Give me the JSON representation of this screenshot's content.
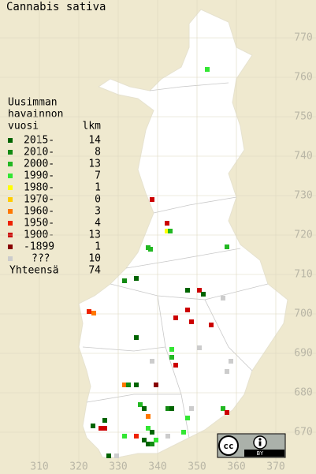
{
  "title": "Cannabis sativa",
  "legend": {
    "header": [
      "Uusimman",
      "havainnon",
      "vuosi"
    ],
    "count_header": "lkm",
    "items": [
      {
        "label": "2015-",
        "count": 14,
        "color": "#006400"
      },
      {
        "label": "2010-",
        "count": 8,
        "color": "#128a12"
      },
      {
        "label": "2000-",
        "count": 13,
        "color": "#22b822"
      },
      {
        "label": "1990-",
        "count": 7,
        "color": "#33e633"
      },
      {
        "label": "1980-",
        "count": 1,
        "color": "#ffff00"
      },
      {
        "label": "1970-",
        "count": 0,
        "color": "#ffcc00"
      },
      {
        "label": "1960-",
        "count": 3,
        "color": "#ff7700"
      },
      {
        "label": "1950-",
        "count": 4,
        "color": "#ee2200"
      },
      {
        "label": "1900-",
        "count": 13,
        "color": "#cc0000"
      },
      {
        "label": "-1899",
        "count": 1,
        "color": "#880000"
      },
      {
        "label": "???",
        "count": 10,
        "color": "#cccccc"
      }
    ],
    "total_label": "Yhteensä",
    "total": 74
  },
  "x_labels": [
    310,
    320,
    330,
    340,
    350,
    360,
    370
  ],
  "y_labels": [
    770,
    760,
    750,
    740,
    730,
    720,
    710,
    700,
    690,
    680,
    670
  ],
  "points": [
    {
      "x": 352.6,
      "y": 762,
      "class": 3
    },
    {
      "x": 338.6,
      "y": 729,
      "class": 8
    },
    {
      "x": 342.4,
      "y": 723,
      "class": 8
    },
    {
      "x": 342.4,
      "y": 721,
      "class": 4
    },
    {
      "x": 343.2,
      "y": 721,
      "class": 2
    },
    {
      "x": 337.6,
      "y": 716.8,
      "class": 2
    },
    {
      "x": 338.2,
      "y": 716.4,
      "class": 2
    },
    {
      "x": 357.6,
      "y": 717,
      "class": 2
    },
    {
      "x": 331.6,
      "y": 708.4,
      "class": 1
    },
    {
      "x": 334.6,
      "y": 709,
      "class": 0
    },
    {
      "x": 347.6,
      "y": 706,
      "class": 0
    },
    {
      "x": 350.6,
      "y": 706,
      "class": 8
    },
    {
      "x": 351.6,
      "y": 705,
      "class": 0
    },
    {
      "x": 356.6,
      "y": 704,
      "class": 10
    },
    {
      "x": 322.6,
      "y": 700.6,
      "class": 7
    },
    {
      "x": 323.8,
      "y": 700.2,
      "class": 6
    },
    {
      "x": 347.6,
      "y": 701,
      "class": 8
    },
    {
      "x": 344.6,
      "y": 699,
      "class": 8
    },
    {
      "x": 348.6,
      "y": 698,
      "class": 8
    },
    {
      "x": 353.6,
      "y": 697.2,
      "class": 8
    },
    {
      "x": 334.6,
      "y": 694,
      "class": 0
    },
    {
      "x": 343.6,
      "y": 691,
      "class": 3
    },
    {
      "x": 343.6,
      "y": 689,
      "class": 2
    },
    {
      "x": 350.6,
      "y": 691.4,
      "class": 10
    },
    {
      "x": 338.6,
      "y": 688,
      "class": 10
    },
    {
      "x": 344.6,
      "y": 687,
      "class": 8
    },
    {
      "x": 358.6,
      "y": 688,
      "class": 10
    },
    {
      "x": 357.6,
      "y": 685.4,
      "class": 10
    },
    {
      "x": 331.6,
      "y": 682,
      "class": 6
    },
    {
      "x": 332.6,
      "y": 682,
      "class": 1
    },
    {
      "x": 334.6,
      "y": 682,
      "class": 0
    },
    {
      "x": 339.6,
      "y": 682,
      "class": 9
    },
    {
      "x": 335.6,
      "y": 677,
      "class": 2
    },
    {
      "x": 336.6,
      "y": 676,
      "class": 0
    },
    {
      "x": 342.6,
      "y": 676,
      "class": 1
    },
    {
      "x": 343.6,
      "y": 676,
      "class": 0
    },
    {
      "x": 348.6,
      "y": 676,
      "class": 10
    },
    {
      "x": 356.6,
      "y": 676,
      "class": 2
    },
    {
      "x": 357.6,
      "y": 675,
      "class": 8
    },
    {
      "x": 347.6,
      "y": 673.6,
      "class": 3
    },
    {
      "x": 337.6,
      "y": 674,
      "class": 6
    },
    {
      "x": 326.6,
      "y": 673,
      "class": 0
    },
    {
      "x": 323.6,
      "y": 671.6,
      "class": 0
    },
    {
      "x": 325.6,
      "y": 671,
      "class": 8
    },
    {
      "x": 326.6,
      "y": 671,
      "class": 8
    },
    {
      "x": 337.6,
      "y": 671,
      "class": 3
    },
    {
      "x": 331.6,
      "y": 669,
      "class": 3
    },
    {
      "x": 334.6,
      "y": 669,
      "class": 7
    },
    {
      "x": 338.6,
      "y": 670,
      "class": 0
    },
    {
      "x": 336.6,
      "y": 668,
      "class": 0
    },
    {
      "x": 337.6,
      "y": 667,
      "class": 0
    },
    {
      "x": 338.6,
      "y": 667,
      "class": 1
    },
    {
      "x": 339.6,
      "y": 668,
      "class": 3
    },
    {
      "x": 342.6,
      "y": 669,
      "class": 10
    },
    {
      "x": 346.6,
      "y": 670,
      "class": 3
    },
    {
      "x": 327.6,
      "y": 664,
      "class": 0
    },
    {
      "x": 329.6,
      "y": 664,
      "class": 10
    }
  ],
  "license": {
    "cc": "cc",
    "by": "BY"
  }
}
